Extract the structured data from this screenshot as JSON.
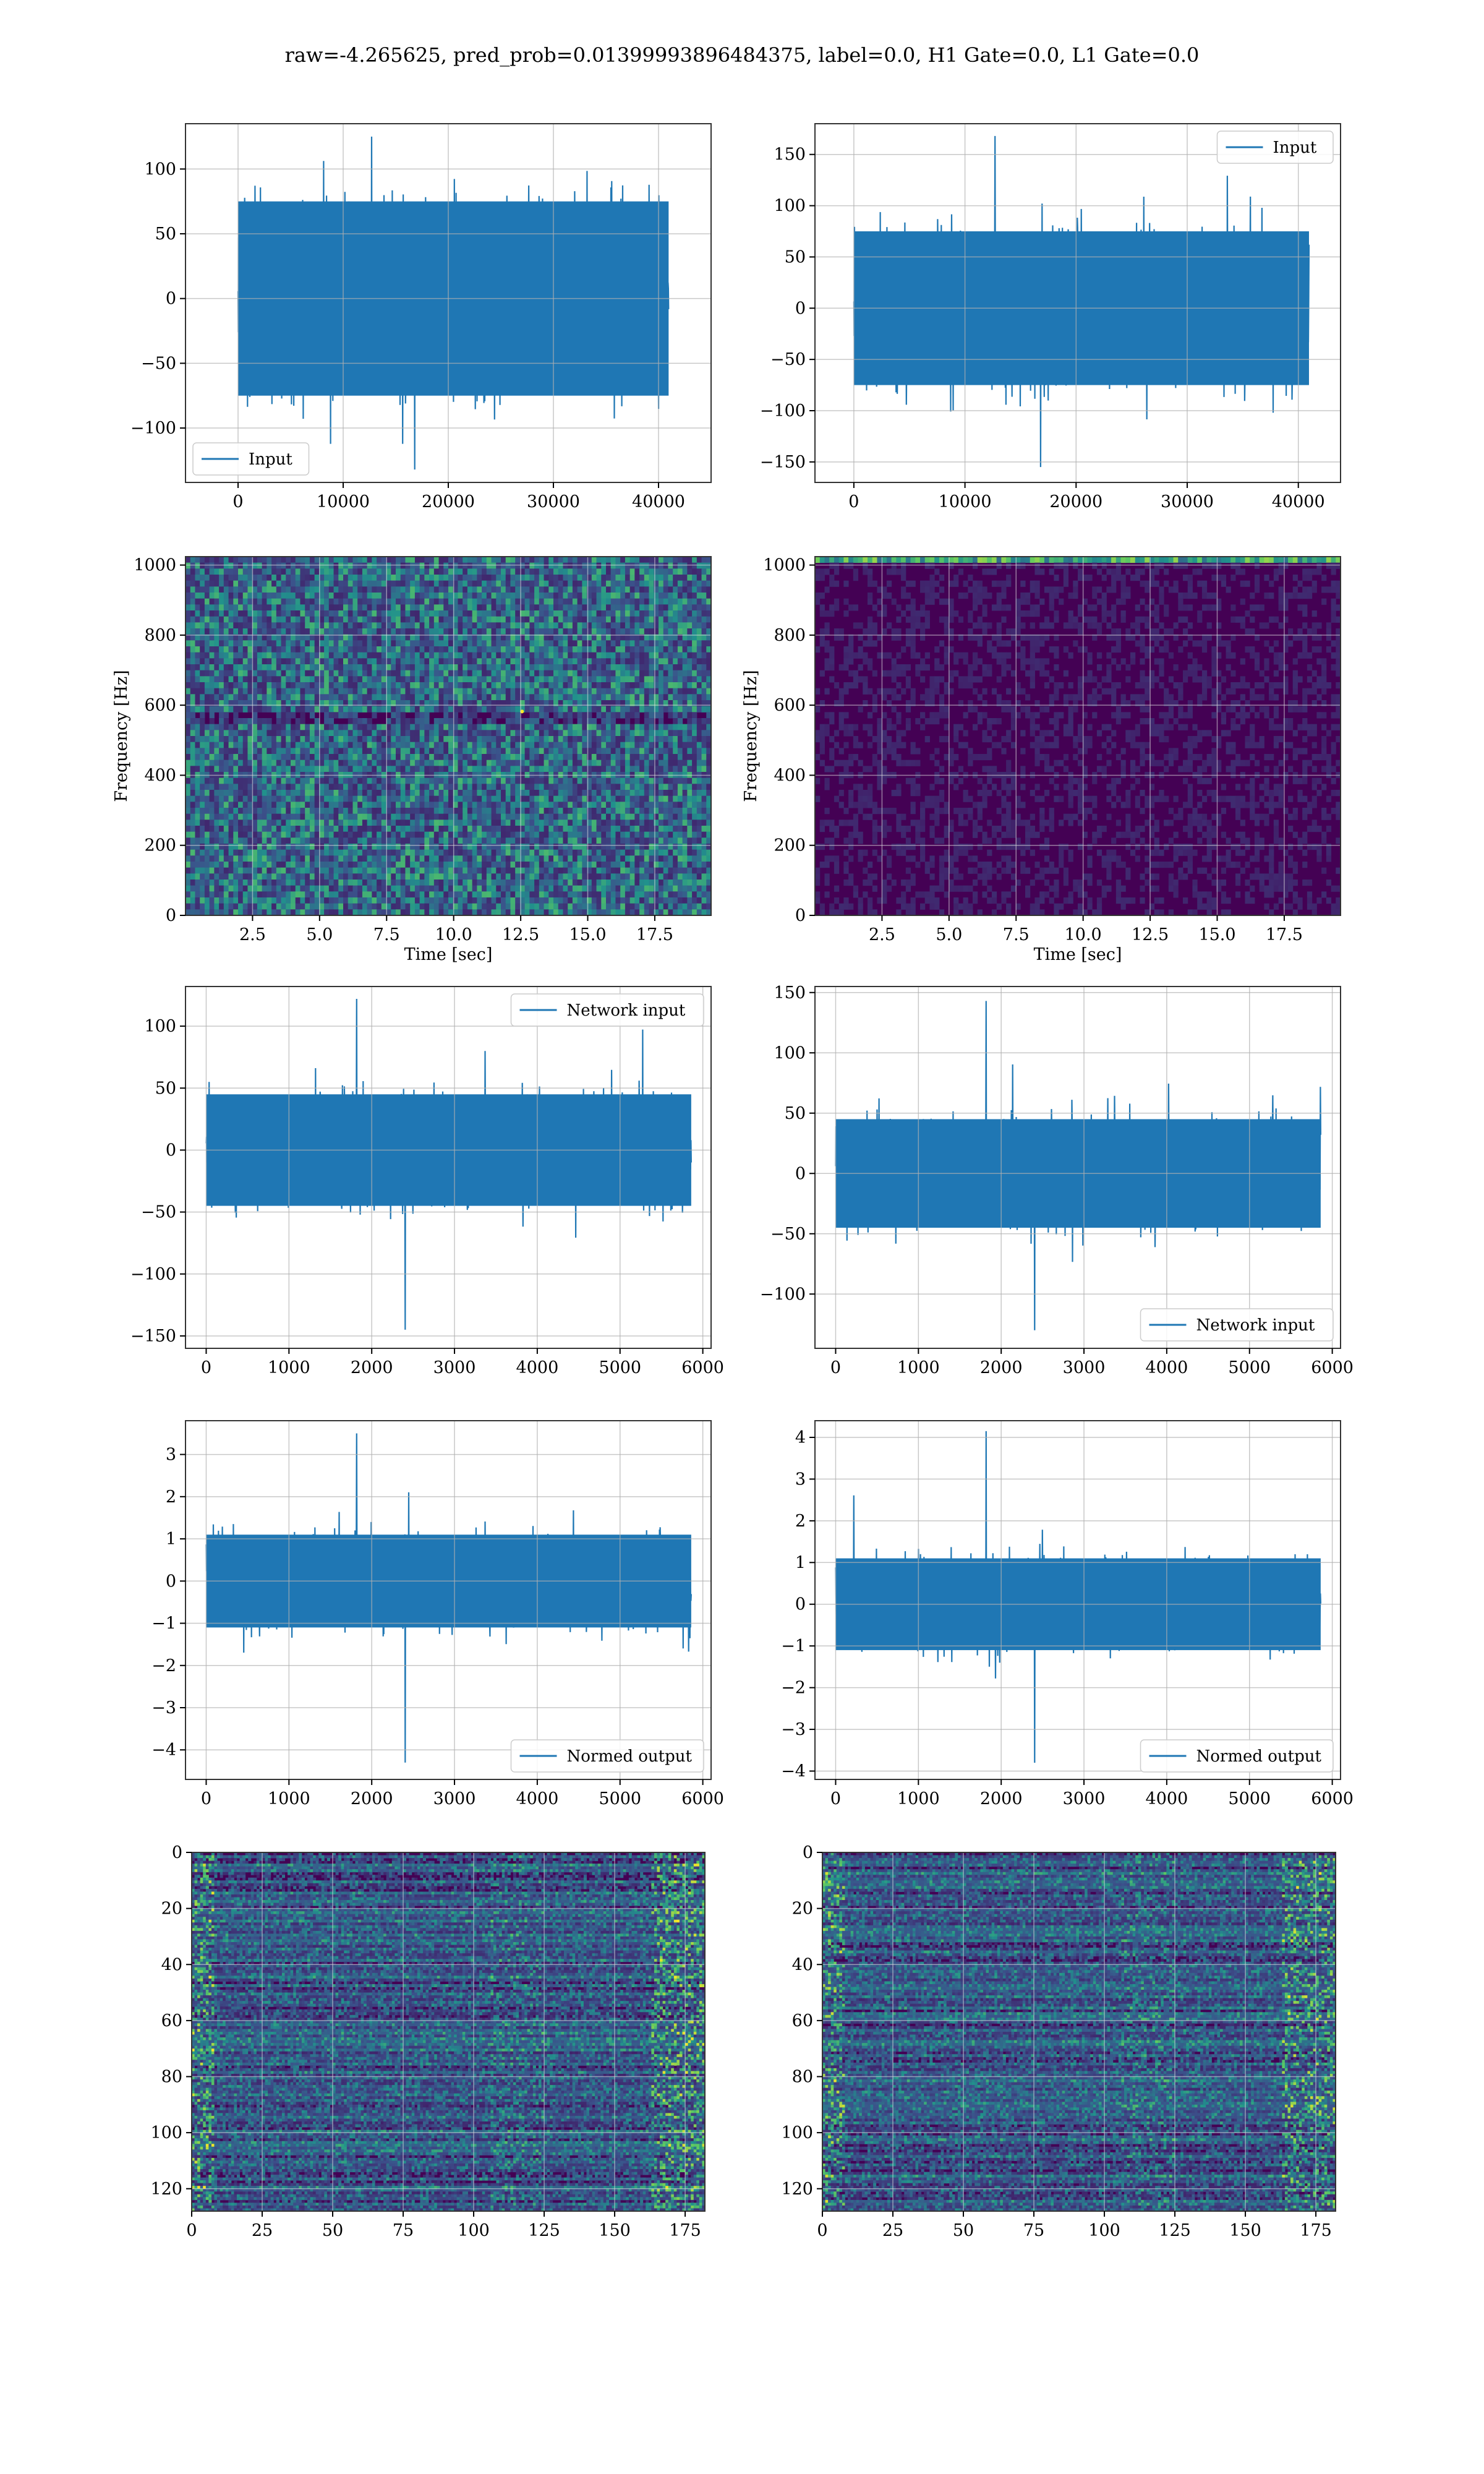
{
  "figure": {
    "title": "raw=-4.265625, pred_prob=0.01399993896484375, label=0.0, H1 Gate=0.0, L1 Gate=0.0"
  },
  "colors": {
    "line": "#1f77b4",
    "grid": "#b0b0b0",
    "viridis_dark": "#440154",
    "viridis_mid": "#21918c",
    "viridis_bright": "#fde725"
  },
  "chart_data": [
    {
      "id": "r1c1",
      "type": "line",
      "title": "",
      "xlabel": "",
      "ylabel": "",
      "xlim": [
        -5000,
        45000
      ],
      "ylim": [
        -142,
        135
      ],
      "xticks": [
        0,
        10000,
        20000,
        30000,
        40000
      ],
      "yticks": [
        -100,
        -50,
        0,
        50,
        100
      ],
      "series": [
        {
          "name": "Input",
          "x_range": [
            0,
            40960
          ],
          "envelope": [
            -75,
            75
          ],
          "peaks": [
            -132,
            125
          ]
        }
      ],
      "legend": "lower left",
      "grid": true
    },
    {
      "id": "r1c2",
      "type": "line",
      "title": "",
      "xlabel": "",
      "ylabel": "",
      "xlim": [
        -3500,
        43800
      ],
      "ylim": [
        -170,
        180
      ],
      "xticks": [
        0,
        10000,
        20000,
        30000,
        40000
      ],
      "yticks": [
        -150,
        -100,
        -50,
        0,
        50,
        100,
        150
      ],
      "series": [
        {
          "name": "Input",
          "x_range": [
            0,
            40960
          ],
          "envelope": [
            -75,
            75
          ],
          "peaks": [
            -155,
            168
          ]
        }
      ],
      "legend": "upper right",
      "grid": true
    },
    {
      "id": "r2c1",
      "type": "heatmap",
      "title": "",
      "xlabel": "Time [sec]",
      "ylabel": "Frequency [Hz]",
      "xlim": [
        0,
        19.6
      ],
      "ylim": [
        0,
        1024
      ],
      "xticks": [
        2.5,
        5.0,
        7.5,
        10.0,
        12.5,
        15.0,
        17.5
      ],
      "xtick_labels": [
        "2.5",
        "5.0",
        "7.5",
        "10.0",
        "12.5",
        "15.0",
        "17.5"
      ],
      "yticks": [
        0,
        200,
        400,
        600,
        800,
        1000
      ],
      "grid": true
    },
    {
      "id": "r2c2",
      "type": "heatmap",
      "title": "",
      "xlabel": "Time [sec]",
      "ylabel": "Frequency [Hz]",
      "xlim": [
        0,
        19.6
      ],
      "ylim": [
        0,
        1024
      ],
      "xticks": [
        2.5,
        5.0,
        7.5,
        10.0,
        12.5,
        15.0,
        17.5
      ],
      "xtick_labels": [
        "2.5",
        "5.0",
        "7.5",
        "10.0",
        "12.5",
        "15.0",
        "17.5"
      ],
      "yticks": [
        0,
        200,
        400,
        600,
        800,
        1000
      ],
      "grid": true
    },
    {
      "id": "r3c1",
      "type": "line",
      "title": "",
      "xlabel": "",
      "ylabel": "",
      "xlim": [
        -250,
        6100
      ],
      "ylim": [
        -160,
        132
      ],
      "xticks": [
        0,
        1000,
        2000,
        3000,
        4000,
        5000,
        6000
      ],
      "yticks": [
        -150,
        -100,
        -50,
        0,
        50,
        100
      ],
      "series": [
        {
          "name": "Network input",
          "x_range": [
            0,
            5860
          ],
          "envelope": [
            -45,
            45
          ],
          "peaks": [
            -145,
            122
          ]
        }
      ],
      "legend": "upper right",
      "grid": true
    },
    {
      "id": "r3c2",
      "type": "line",
      "title": "",
      "xlabel": "",
      "ylabel": "",
      "xlim": [
        -250,
        6100
      ],
      "ylim": [
        -145,
        155
      ],
      "xticks": [
        0,
        1000,
        2000,
        3000,
        4000,
        5000,
        6000
      ],
      "yticks": [
        -100,
        -50,
        0,
        50,
        100,
        150
      ],
      "series": [
        {
          "name": "Network input",
          "x_range": [
            0,
            5860
          ],
          "envelope": [
            -45,
            45
          ],
          "peaks": [
            -130,
            143
          ]
        }
      ],
      "legend": "lower right",
      "grid": true
    },
    {
      "id": "r4c1",
      "type": "line",
      "title": "",
      "xlabel": "",
      "ylabel": "",
      "xlim": [
        -250,
        6100
      ],
      "ylim": [
        -4.7,
        3.8
      ],
      "xticks": [
        0,
        1000,
        2000,
        3000,
        4000,
        5000,
        6000
      ],
      "yticks": [
        -4,
        -3,
        -2,
        -1,
        0,
        1,
        2,
        3
      ],
      "series": [
        {
          "name": "Normed output",
          "x_range": [
            0,
            5860
          ],
          "envelope": [
            -1.1,
            1.1
          ],
          "peaks": [
            -4.3,
            3.5
          ]
        }
      ],
      "legend": "lower right",
      "grid": true
    },
    {
      "id": "r4c2",
      "type": "line",
      "title": "",
      "xlabel": "",
      "ylabel": "",
      "xlim": [
        -250,
        6100
      ],
      "ylim": [
        -4.2,
        4.4
      ],
      "xticks": [
        0,
        1000,
        2000,
        3000,
        4000,
        5000,
        6000
      ],
      "yticks": [
        -4,
        -3,
        -2,
        -1,
        0,
        1,
        2,
        3,
        4
      ],
      "series": [
        {
          "name": "Normed output",
          "x_range": [
            0,
            5860
          ],
          "envelope": [
            -1.1,
            1.1
          ],
          "peaks": [
            -3.8,
            4.15
          ]
        }
      ],
      "legend": "lower right",
      "grid": true
    },
    {
      "id": "r5c1",
      "type": "heatmap",
      "title": "",
      "xlabel": "",
      "ylabel": "",
      "xlim": [
        0,
        182
      ],
      "ylim": [
        128,
        0
      ],
      "xticks": [
        0,
        25,
        50,
        75,
        100,
        125,
        150,
        175
      ],
      "yticks": [
        0,
        20,
        40,
        60,
        80,
        100,
        120
      ],
      "grid": true
    },
    {
      "id": "r5c2",
      "type": "heatmap",
      "title": "",
      "xlabel": "",
      "ylabel": "",
      "xlim": [
        0,
        182
      ],
      "ylim": [
        128,
        0
      ],
      "xticks": [
        0,
        25,
        50,
        75,
        100,
        125,
        150,
        175
      ],
      "yticks": [
        0,
        20,
        40,
        60,
        80,
        100,
        120
      ],
      "grid": true
    }
  ]
}
